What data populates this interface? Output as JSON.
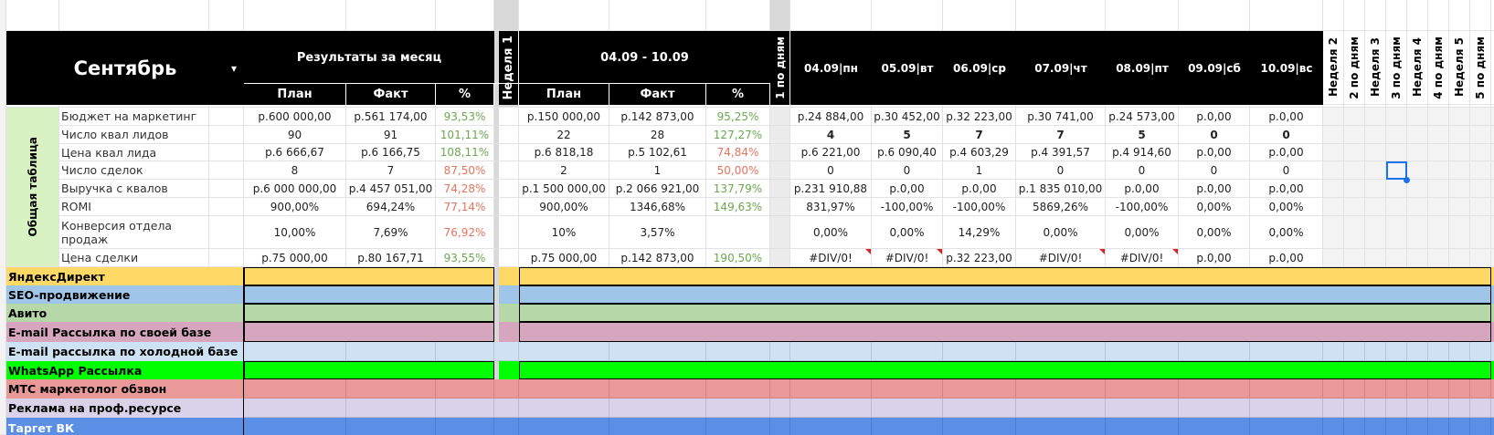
{
  "header": {
    "month": "Сентябрь",
    "month_results": "Результаты за месяц",
    "week1_label": "Неделя 1",
    "week1_range": "04.09 - 10.09",
    "week1_days_label": "1 по дням",
    "days": [
      "04.09|пн",
      "05.09|вт",
      "06.09|ср",
      "07.09|чт",
      "08.09|пт",
      "09.09|сб",
      "10.09|вс"
    ],
    "week_columns": [
      "Неделя 2",
      "2 по дням",
      "Неделя 3",
      "3 по дням",
      "Неделя 4",
      "4 по дням",
      "Неделя 5",
      "5 по дням"
    ]
  },
  "subheaders": [
    "План",
    "Факт",
    "%"
  ],
  "group_label": "Общая таблица",
  "metrics": [
    {
      "label": "Бюджет на маркетинг",
      "month": [
        "р.600 000,00",
        "р.561 174,00",
        "93,53%"
      ],
      "month_pct_color": "#6aa84f",
      "week": [
        "р.150 000,00",
        "р.142 873,00",
        "95,25%"
      ],
      "week_pct_color": "#6aa84f",
      "days": [
        "р.24 884,00",
        "р.30 452,00",
        "р.32 223,00",
        "р.30 741,00",
        "р.24 573,00",
        "р.0,00",
        "р.0,00"
      ]
    },
    {
      "label": "Число  квал лидов",
      "month": [
        "90",
        "91",
        "101,11%"
      ],
      "month_pct_color": "#6aa84f",
      "week": [
        "22",
        "28",
        "127,27%"
      ],
      "week_pct_color": "#6aa84f",
      "days": [
        "4",
        "5",
        "7",
        "7",
        "5",
        "0",
        "0"
      ],
      "days_bold": true
    },
    {
      "label": "Цена квал лида",
      "month": [
        "р.6 666,67",
        "р.6 166,75",
        "108,11%"
      ],
      "month_pct_color": "#6aa84f",
      "week": [
        "р.6 818,18",
        "р.5 102,61",
        "74,84%"
      ],
      "week_pct_color": "#e6735c",
      "days": [
        "р.6 221,00",
        "р.6 090,40",
        "р.4 603,29",
        "р.4 391,57",
        "р.4 914,60",
        "р.0,00",
        "р.0,00"
      ]
    },
    {
      "label": "Число сделок",
      "month": [
        "8",
        "7",
        "87,50%"
      ],
      "month_pct_color": "#e6735c",
      "week": [
        "2",
        "1",
        "50,00%"
      ],
      "week_pct_color": "#e6735c",
      "days": [
        "0",
        "0",
        "1",
        "0",
        "0",
        "0",
        "0"
      ]
    },
    {
      "label": "Выручка с квалов",
      "month": [
        "р.6 000 000,00",
        "р.4 457 051,00",
        "74,28%"
      ],
      "month_pct_color": "#e6735c",
      "week": [
        "р.1 500 000,00",
        "р.2 066 921,00",
        "137,79%"
      ],
      "week_pct_color": "#6aa84f",
      "days": [
        "р.231 910,88",
        "р.0,00",
        "р.0,00",
        "р.1 835 010,00",
        "р.0,00",
        "р.0,00",
        "р.0,00"
      ]
    },
    {
      "label": "ROMI",
      "month": [
        "900,00%",
        "694,24%",
        "77,14%"
      ],
      "month_pct_color": "#e6735c",
      "week": [
        "900,00%",
        "1346,68%",
        "149,63%"
      ],
      "week_pct_color": "#6aa84f",
      "days": [
        "831,97%",
        "-100,00%",
        "-100,00%",
        "5869,26%",
        "-100,00%",
        "0,00%",
        "0,00%"
      ]
    },
    {
      "label": "Конверсия отдела продаж",
      "month": [
        "10,00%",
        "7,69%",
        "76,92%"
      ],
      "month_pct_color": "#e6735c",
      "week": [
        "10%",
        "3,57%",
        null
      ],
      "week_pct_color": "#6aa84f",
      "days": [
        "0,00%",
        "0,00%",
        "14,29%",
        "0,00%",
        "0,00%",
        "0,00%",
        "0,00%"
      ]
    },
    {
      "label": "Цена сделки",
      "month": [
        "р.75 000,00",
        "р.80 167,71",
        "93,55%"
      ],
      "month_pct_color": "#6aa84f",
      "week": [
        "р.75 000,00",
        "р.142 873,00",
        "190,50%"
      ],
      "week_pct_color": "#6aa84f",
      "days": [
        "#DIV/0!",
        "#DIV/0!",
        "р.32 223,00",
        "#DIV/0!",
        "#DIV/0!",
        "р.0,00",
        "р.0,00"
      ]
    }
  ],
  "channels": [
    {
      "label": "ЯндексДирект",
      "color": "#ffd966",
      "merged": true
    },
    {
      "label": "SEO-продвижение",
      "color": "#9fc5e8",
      "merged": true
    },
    {
      "label": "Авито",
      "color": "#b6d7a8",
      "merged": true
    },
    {
      "label": "E-mail Рассылка по своей базе",
      "color": "#d5a6bd",
      "merged": true
    },
    {
      "label": "E-mail рассылка по холодной базе",
      "color": "#cfe2f3",
      "merged": false
    },
    {
      "label": "WhatsApp Рассылка",
      "color": "#00ff00",
      "merged": true
    },
    {
      "label": "МТС маркетолог обзвон",
      "color": "#ea9999",
      "merged": false
    },
    {
      "label": "Реклама на проф.ресурсе",
      "color": "#d9d2e9",
      "merged": false
    },
    {
      "label": "Таргет ВК",
      "color": "#5b8fe6",
      "merged": false,
      "text_color": "#ffffff"
    }
  ]
}
